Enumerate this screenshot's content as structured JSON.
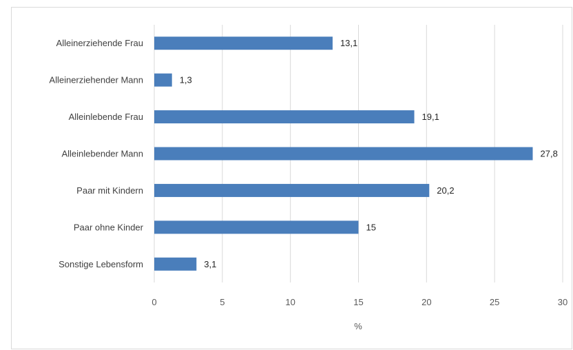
{
  "chart_data": {
    "type": "bar",
    "orientation": "horizontal",
    "categories": [
      "Alleinerziehende Frau",
      "Alleinerziehender Mann",
      "Alleinlebende Frau",
      "Alleinlebender Mann",
      "Paar mit Kindern",
      "Paar ohne Kinder",
      "Sonstige Lebensform"
    ],
    "values": [
      13.1,
      1.3,
      19.1,
      27.8,
      20.2,
      15,
      3.1
    ],
    "value_labels": [
      "13,1",
      "1,3",
      "19,1",
      "27,8",
      "20,2",
      "15",
      "3,1"
    ],
    "xlabel": "%",
    "xlim": [
      0,
      30
    ],
    "xticks": [
      0,
      5,
      10,
      15,
      20,
      25,
      30
    ],
    "xtick_labels": [
      "0",
      "5",
      "10",
      "15",
      "20",
      "25",
      "30"
    ],
    "grid": "vertical",
    "legend": "none",
    "bar_color": "#4a7ebb",
    "grid_color": "#d9d9d9"
  }
}
